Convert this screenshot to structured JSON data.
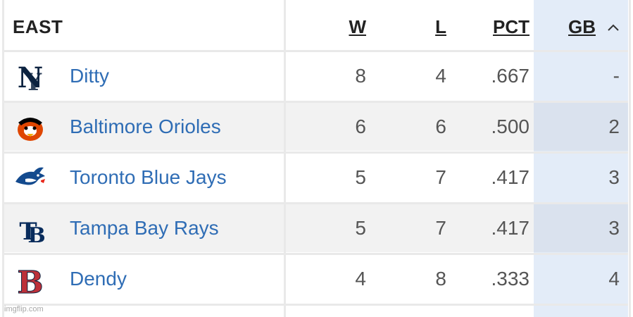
{
  "header": {
    "division": "EAST",
    "col_w": "W",
    "col_l": "L",
    "col_pct": "PCT",
    "col_gb": "GB",
    "sort_caret": "^"
  },
  "rows": [
    {
      "team": "Ditty",
      "logo": "yankees-logo",
      "w": "8",
      "l": "4",
      "pct": ".667",
      "gb": "-"
    },
    {
      "team": "Baltimore Orioles",
      "logo": "orioles-logo",
      "w": "6",
      "l": "6",
      "pct": ".500",
      "gb": "2"
    },
    {
      "team": "Toronto Blue Jays",
      "logo": "blue-jays-logo",
      "w": "5",
      "l": "7",
      "pct": ".417",
      "gb": "3"
    },
    {
      "team": "Tampa Bay Rays",
      "logo": "rays-logo",
      "w": "5",
      "l": "7",
      "pct": ".417",
      "gb": "3"
    },
    {
      "team": "Dendy",
      "logo": "red-sox-logo",
      "w": "4",
      "l": "8",
      "pct": ".333",
      "gb": "4"
    }
  ],
  "watermark": "imgflip.com",
  "colors": {
    "team_link": "#2f6db5",
    "gb_highlight": "#e3ecf8",
    "header_text": "#222222"
  }
}
